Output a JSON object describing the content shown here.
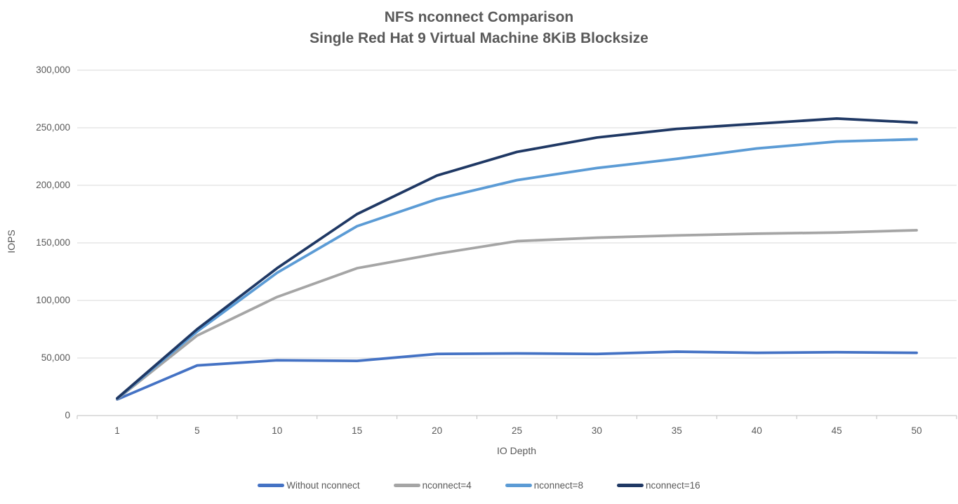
{
  "chart_data": {
    "type": "line",
    "title": "NFS nconnect Comparison",
    "subtitle": "Single Red Hat 9 Virtual Machine 8KiB Blocksize",
    "xlabel": "IO Depth",
    "ylabel": "IOPS",
    "categories": [
      "1",
      "5",
      "10",
      "15",
      "20",
      "25",
      "30",
      "35",
      "40",
      "45",
      "50"
    ],
    "ylim": [
      0,
      300000
    ],
    "yticks": [
      0,
      50000,
      100000,
      150000,
      200000,
      250000,
      300000
    ],
    "ytick_labels": [
      "0",
      "50,000",
      "100,000",
      "150,000",
      "200,000",
      "250,000",
      "300,000"
    ],
    "grid": "horizontal",
    "legend_position": "bottom",
    "colors": {
      "grid_line": "#D9D9D9",
      "axis_line": "#BFBFBF",
      "text": "#595959"
    },
    "series": [
      {
        "name": "Without nconnect",
        "color": "#4472C4",
        "values": [
          14000,
          43500,
          48000,
          47500,
          53500,
          54000,
          53500,
          55500,
          54500,
          55000,
          54500
        ]
      },
      {
        "name": "nconnect=4",
        "color": "#A5A5A5",
        "values": [
          14300,
          69500,
          103000,
          128000,
          140500,
          151500,
          154500,
          156500,
          158000,
          159000,
          161000
        ]
      },
      {
        "name": "nconnect=8",
        "color": "#5B9BD5",
        "values": [
          14700,
          73000,
          124000,
          164500,
          188000,
          204500,
          215000,
          223000,
          232000,
          238000,
          240000
        ]
      },
      {
        "name": "nconnect=16",
        "color": "#1F3864",
        "values": [
          15000,
          75000,
          128000,
          175000,
          208500,
          229000,
          241500,
          249000,
          253500,
          258000,
          254500
        ]
      }
    ]
  }
}
